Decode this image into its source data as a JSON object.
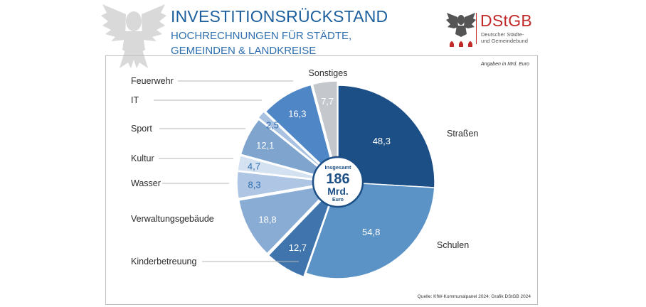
{
  "header": {
    "title": "INVESTITIONSRÜCKSTAND",
    "subtitle_line1": "HOCHRECHNUNGEN FÜR STÄDTE,",
    "subtitle_line2": "GEMEINDEN & LANDKREISE"
  },
  "logo": {
    "name": "DStGB",
    "sub_line1": "Deutscher Städte-",
    "sub_line2": "und Gemeindebund",
    "color": "#c22a2a"
  },
  "note": "Angaben in Mrd. Euro",
  "source": "Quelle: KfW-Kommunalpanel 2024; Grafik DStGB 2024",
  "center": {
    "line1": "Insgesamt",
    "line2": "186",
    "line3": "Mrd.",
    "line4": "Euro"
  },
  "chart_data": {
    "type": "pie",
    "unit": "Mrd. Euro",
    "total": 186,
    "slices": [
      {
        "label": "Straßen",
        "value": 48.3,
        "display": "48,3",
        "color": "#1c4f86",
        "text_color": "#ffffff"
      },
      {
        "label": "Schulen",
        "value": 54.8,
        "display": "54,8",
        "color": "#5b93c7",
        "text_color": "#ffffff"
      },
      {
        "label": "Kinderbetreuung",
        "value": 12.7,
        "display": "12,7",
        "color": "#3f74ad",
        "text_color": "#ffffff"
      },
      {
        "label": "Verwaltungsgebäude",
        "value": 18.8,
        "display": "18,8",
        "color": "#89acd4",
        "text_color": "#ffffff"
      },
      {
        "label": "Wasser",
        "value": 8.3,
        "display": "8,3",
        "color": "#aec6e3",
        "text_color": "#2d6db0"
      },
      {
        "label": "Kultur",
        "value": 4.7,
        "display": "4,7",
        "color": "#d4e1f0",
        "text_color": "#2d6db0"
      },
      {
        "label": "Sport",
        "value": 12.1,
        "display": "12,1",
        "color": "#7fa5cf",
        "text_color": "#ffffff"
      },
      {
        "label": "IT",
        "value": 2.5,
        "display": "2,5",
        "color": "#a9c2e2",
        "text_color": "#2d6db0"
      },
      {
        "label": "Feuerwehr",
        "value": 16.3,
        "display": "16,3",
        "color": "#4f86c6",
        "text_color": "#ffffff"
      },
      {
        "label": "Sonstiges",
        "value": 7.7,
        "display": "7,7",
        "color": "#c4c7cc",
        "text_color": "#ffffff"
      }
    ]
  }
}
